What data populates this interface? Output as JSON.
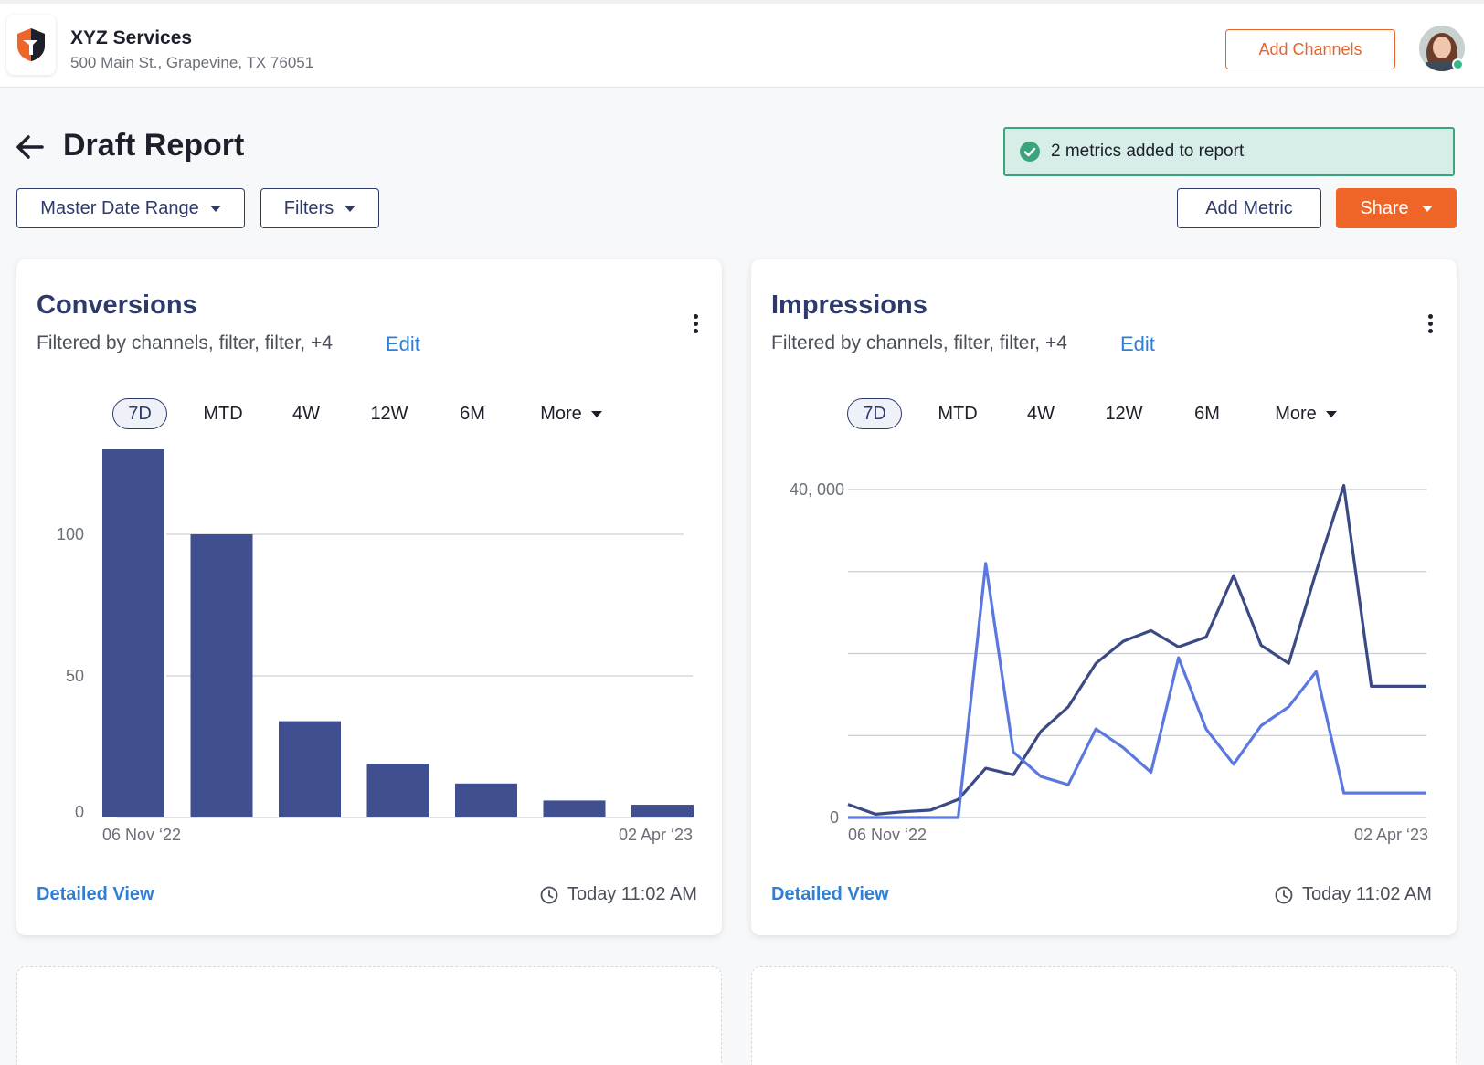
{
  "header": {
    "business_name": "XYZ Services",
    "business_address": "500 Main St., Grapevine, TX 76051",
    "add_channels_label": "Add Channels"
  },
  "page": {
    "title": "Draft Report",
    "toast": "2 metrics added to report"
  },
  "controls": {
    "master_date_range": "Master Date Range",
    "filters": "Filters",
    "add_metric": "Add Metric",
    "share": "Share"
  },
  "colors": {
    "accent_orange": "#ef6527",
    "navy": "#2e3a6a",
    "link_blue": "#2f7fd6",
    "bar_fill": "#3f4f8f",
    "line_dark": "#3b4a84",
    "line_light": "#5b78e0",
    "toast_bg": "#d7eee8",
    "toast_border": "#3aa57c"
  },
  "icons": [
    "logo-icon",
    "back-arrow-icon",
    "check-circle-icon",
    "caret-down-icon",
    "kebab-menu-icon",
    "clock-icon"
  ],
  "range_tabs": [
    "7D",
    "MTD",
    "4W",
    "12W",
    "6M",
    "More"
  ],
  "cards": [
    {
      "title": "Conversions",
      "subtitle": "Filtered by channels, filter, filter, +4",
      "edit_label": "Edit",
      "detail_label": "Detailed View",
      "updated": "Today 11:02 AM",
      "chart_data": {
        "type": "bar",
        "categories": [
          "1",
          "2",
          "3",
          "4",
          "5",
          "6",
          "7"
        ],
        "values": [
          130,
          100,
          34,
          19,
          12,
          6,
          4.5
        ],
        "title": "",
        "xlabel": "",
        "ylabel": "",
        "ylim": [
          0,
          130
        ],
        "yticks": [
          "0",
          "50",
          "100"
        ],
        "x_start_label": "06 Nov ‘22",
        "x_end_label": "02 Apr ‘23",
        "grid": true
      }
    },
    {
      "title": "Impressions",
      "subtitle": "Filtered by channels, filter, filter, +4",
      "edit_label": "Edit",
      "detail_label": "Detailed View",
      "updated": "Today 11:02 AM",
      "chart_data": {
        "type": "line",
        "x": [
          0,
          1,
          2,
          3,
          4,
          5,
          6,
          7,
          8,
          9,
          10,
          11,
          12,
          13,
          14,
          15,
          16,
          17,
          18,
          19,
          20,
          21
        ],
        "series": [
          {
            "values": [
              1600,
              400,
              700,
              900,
              2200,
              6000,
              5200,
              10500,
              13500,
              18800,
              21500,
              22800,
              20800,
              22000,
              29500,
              21000,
              18800,
              30000,
              40500,
              16000,
              16000,
              16000
            ]
          },
          {
            "values": [
              0,
              0,
              0,
              0,
              0,
              31000,
              8000,
              5000,
              4000,
              10800,
              8500,
              5500,
              19500,
              10800,
              6500,
              11200,
              13500,
              17800,
              3000,
              3000,
              3000,
              3000
            ]
          }
        ],
        "title": "",
        "xlabel": "",
        "ylabel": "",
        "ylim": [
          0,
          40000
        ],
        "yticks": [
          "0",
          "40, 000"
        ],
        "x_start_label": "06 Nov ‘22",
        "x_end_label": "02 Apr ‘23",
        "grid": true
      }
    }
  ]
}
